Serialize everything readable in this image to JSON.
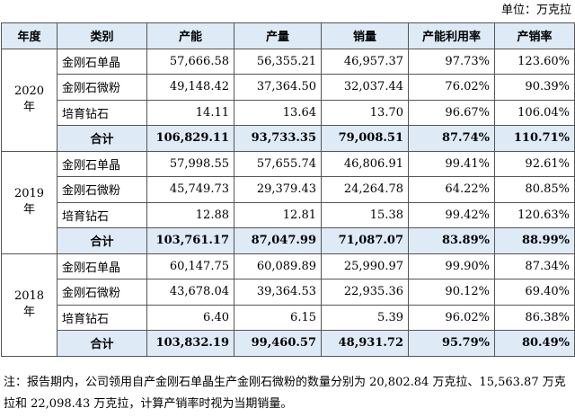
{
  "unit_label": "单位：万克拉",
  "headers": [
    "年度",
    "类别",
    "产能",
    "产量",
    "销量",
    "产能利用率",
    "产销率"
  ],
  "groups": [
    {
      "year": "2020",
      "year_suffix": "年",
      "rows": [
        {
          "category": "金刚石单晶",
          "capacity": "57,666.58",
          "output": "56,355.21",
          "sales": "46,957.37",
          "utilization": "97.73%",
          "sales_ratio": "123.60%"
        },
        {
          "category": "金刚石微粉",
          "capacity": "49,148.42",
          "output": "37,364.50",
          "sales": "32,037.44",
          "utilization": "76.02%",
          "sales_ratio": "90.39%"
        },
        {
          "category": "培育钻石",
          "capacity": "14.11",
          "output": "13.64",
          "sales": "13.70",
          "utilization": "96.67%",
          "sales_ratio": "106.04%"
        }
      ],
      "total": {
        "category": "合计",
        "capacity": "106,829.11",
        "output": "93,733.35",
        "sales": "79,008.51",
        "utilization": "87.74%",
        "sales_ratio": "110.71%"
      }
    },
    {
      "year": "2019",
      "year_suffix": "年",
      "rows": [
        {
          "category": "金刚石单晶",
          "capacity": "57,998.55",
          "output": "57,655.74",
          "sales": "46,806.91",
          "utilization": "99.41%",
          "sales_ratio": "92.61%"
        },
        {
          "category": "金刚石微粉",
          "capacity": "45,749.73",
          "output": "29,379.43",
          "sales": "24,264.78",
          "utilization": "64.22%",
          "sales_ratio": "80.85%"
        },
        {
          "category": "培育钻石",
          "capacity": "12.88",
          "output": "12.81",
          "sales": "15.38",
          "utilization": "99.42%",
          "sales_ratio": "120.63%"
        }
      ],
      "total": {
        "category": "合计",
        "capacity": "103,761.17",
        "output": "87,047.99",
        "sales": "71,087.07",
        "utilization": "83.89%",
        "sales_ratio": "88.99%"
      }
    },
    {
      "year": "2018",
      "year_suffix": "年",
      "rows": [
        {
          "category": "金刚石单晶",
          "capacity": "60,147.75",
          "output": "60,089.89",
          "sales": "25,990.97",
          "utilization": "99.90%",
          "sales_ratio": "87.34%"
        },
        {
          "category": "金刚石微粉",
          "capacity": "43,678.04",
          "output": "39,364.53",
          "sales": "22,935.36",
          "utilization": "90.12%",
          "sales_ratio": "69.40%"
        },
        {
          "category": "培育钻石",
          "capacity": "6.40",
          "output": "6.15",
          "sales": "5.39",
          "utilization": "96.02%",
          "sales_ratio": "86.38%"
        }
      ],
      "total": {
        "category": "合计",
        "capacity": "103,832.19",
        "output": "99,460.57",
        "sales": "48,931.72",
        "utilization": "95.79%",
        "sales_ratio": "80.49%"
      }
    }
  ],
  "note": "注：报告期内，公司领用自产金刚石单晶生产金刚石微粉的数量分别为 20,802.84 万克拉、15,563.87 万克拉和 22,098.43 万克拉，计算产销率时视为当期销量。"
}
